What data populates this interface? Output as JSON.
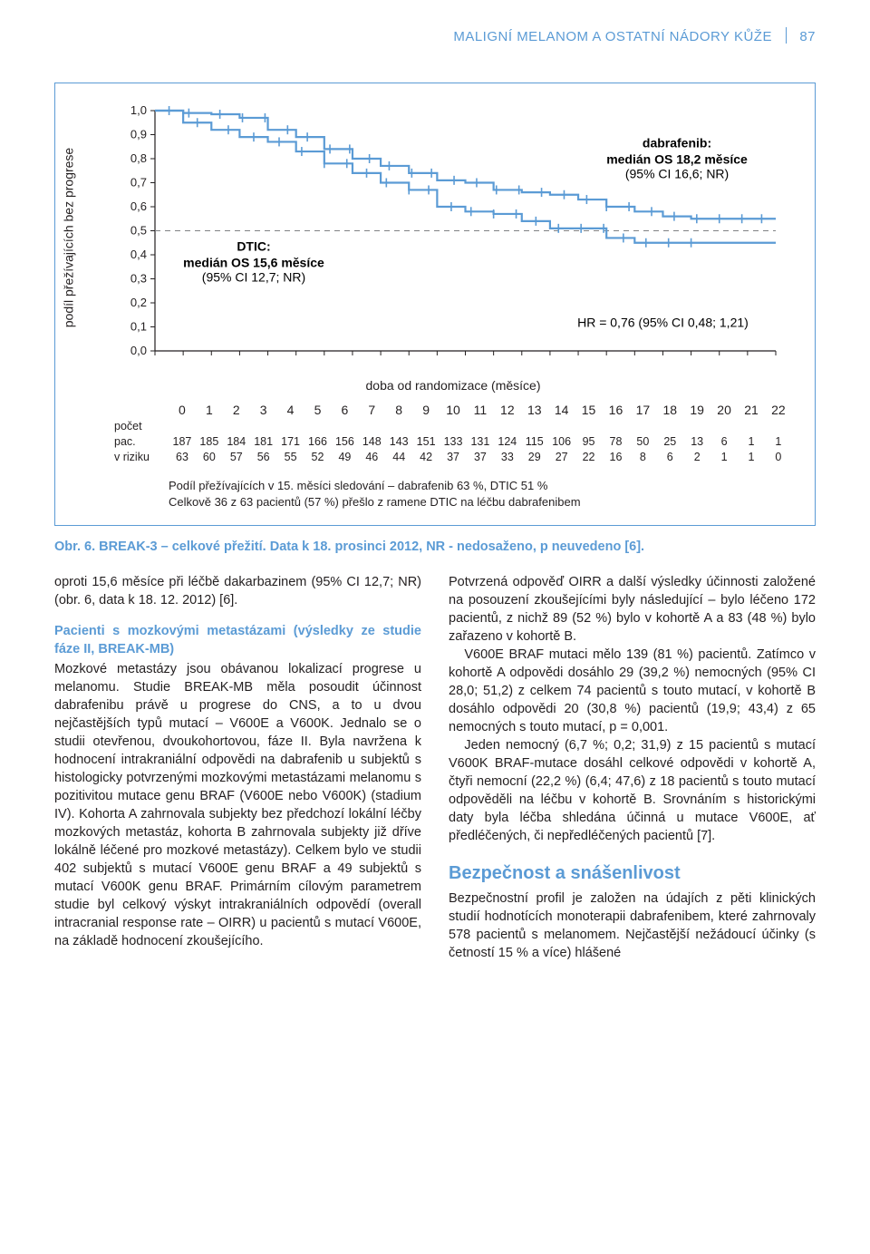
{
  "header": {
    "title": "MALIGNÍ MELANOM A OSTATNÍ NÁDORY KŮŽE",
    "page": "87"
  },
  "chart": {
    "type": "kaplan-meier",
    "y_label": "podíl přežívajících bez progrese",
    "x_label": "doba od randomizace (měsíce)",
    "ylim": [
      0,
      1.0
    ],
    "ytick_step": 0.1,
    "xlim": [
      0,
      22
    ],
    "xtick_step": 1,
    "yticks": [
      "0,0",
      "0,1",
      "0,2",
      "0,3",
      "0,4",
      "0,5",
      "0,6",
      "0,7",
      "0,8",
      "0,9",
      "1,0"
    ],
    "xticks": [
      "0",
      "1",
      "2",
      "3",
      "4",
      "5",
      "6",
      "7",
      "8",
      "9",
      "10",
      "11",
      "12",
      "13",
      "14",
      "15",
      "16",
      "17",
      "18",
      "19",
      "20",
      "21",
      "22"
    ],
    "axis_color": "#231f20",
    "grid_color": "#ffffff",
    "dashed_ref_y": 0.5,
    "dashed_color": "#808285",
    "series": [
      {
        "name": "dabrafenib",
        "color": "#5b9bd5",
        "width": 2.2,
        "points": [
          [
            0,
            1.0
          ],
          [
            1,
            0.99
          ],
          [
            2,
            0.985
          ],
          [
            3,
            0.97
          ],
          [
            4,
            0.92
          ],
          [
            5,
            0.89
          ],
          [
            6,
            0.84
          ],
          [
            7,
            0.8
          ],
          [
            8,
            0.77
          ],
          [
            9,
            0.74
          ],
          [
            10,
            0.71
          ],
          [
            11,
            0.7
          ],
          [
            12,
            0.67
          ],
          [
            13,
            0.66
          ],
          [
            14,
            0.65
          ],
          [
            15,
            0.63
          ],
          [
            16,
            0.6
          ],
          [
            17,
            0.58
          ],
          [
            18,
            0.56
          ],
          [
            19,
            0.55
          ],
          [
            20,
            0.55
          ],
          [
            21,
            0.55
          ],
          [
            22,
            0.55
          ]
        ],
        "censor_x": [
          0.5,
          1.2,
          2.3,
          3.1,
          3.9,
          4.7,
          5.4,
          6.2,
          6.9,
          7.6,
          8.3,
          9.1,
          9.8,
          10.6,
          11.4,
          12.1,
          12.9,
          13.7,
          14.5,
          15.3,
          16.0,
          16.8,
          17.6,
          18.4,
          19.2,
          20.0,
          20.8,
          21.5
        ]
      },
      {
        "name": "dtic",
        "color": "#5b9bd5",
        "width": 2.2,
        "points": [
          [
            0,
            1.0
          ],
          [
            1,
            0.95
          ],
          [
            2,
            0.92
          ],
          [
            3,
            0.89
          ],
          [
            4,
            0.87
          ],
          [
            5,
            0.83
          ],
          [
            6,
            0.78
          ],
          [
            7,
            0.74
          ],
          [
            8,
            0.7
          ],
          [
            9,
            0.67
          ],
          [
            10,
            0.6
          ],
          [
            11,
            0.58
          ],
          [
            12,
            0.57
          ],
          [
            13,
            0.54
          ],
          [
            14,
            0.51
          ],
          [
            15,
            0.51
          ],
          [
            16,
            0.47
          ],
          [
            17,
            0.45
          ],
          [
            18,
            0.45
          ],
          [
            19,
            0.45
          ],
          [
            20,
            0.45
          ],
          [
            21,
            0.45
          ],
          [
            22,
            0.45
          ]
        ],
        "censor_x": [
          1.5,
          2.6,
          3.5,
          4.4,
          5.2,
          6.0,
          6.8,
          7.5,
          8.2,
          9.0,
          9.7,
          10.5,
          11.2,
          12.0,
          12.8,
          13.5,
          14.3,
          15.1,
          15.9,
          16.6,
          17.4,
          18.2,
          19.0
        ]
      }
    ],
    "annot_dtic": {
      "l1": "DTIC:",
      "l2": "medián OS 15,6 měsíce",
      "l3": "(95% CI 12,7; NR)"
    },
    "annot_dabra": {
      "l1": "dabrafenib:",
      "l2": "medián OS 18,2 měsíce",
      "l3": "(95% CI 16,6; NR)"
    },
    "annot_hr": "HR = 0,76 (95% CI 0,48; 1,21)",
    "risk_label_col": "počet",
    "risk_rows": [
      {
        "label": "pac.",
        "values": [
          "187",
          "185",
          "184",
          "181",
          "171",
          "166",
          "156",
          "148",
          "143",
          "151",
          "133",
          "131",
          "124",
          "115",
          "106",
          "95",
          "78",
          "50",
          "25",
          "13",
          "6",
          "1",
          "1"
        ]
      },
      {
        "label": "v riziku",
        "values": [
          "63",
          "60",
          "57",
          "56",
          "55",
          "52",
          "49",
          "46",
          "44",
          "42",
          "37",
          "37",
          "33",
          "29",
          "27",
          "22",
          "16",
          "8",
          "6",
          "2",
          "1",
          "1",
          "0"
        ]
      }
    ],
    "note_l1": "Podíl přežívajících v 15. měsíci sledování – dabrafenib 63 %, DTIC 51 %",
    "note_l2": "Celkově 36 z 63 pacientů (57 %) přešlo z ramene DTIC na léčbu dabrafenibem"
  },
  "caption": "Obr. 6. BREAK-3 – celkové přežití. Data k  18. prosinci 2012, NR - nedosaženo, p neuvedeno [6].",
  "left": {
    "p1": "oproti 15,6 měsíce při léčbě dakarbazinem (95% CI 12,7; NR) (obr. 6, data k 18. 12. 2012) [6].",
    "h1": "Pacienti s mozkovými metastázami (výsledky ze studie fáze II, BREAK-MB)",
    "p2": "Mozkové metastázy jsou obávanou lokalizací progrese u melanomu. Studie BREAK-MB měla posoudit účinnost dabrafenibu právě u progrese do CNS, a to u dvou nejčastějších typů mutací – V600E a V600K. Jednalo se o studii otevřenou, dvoukohortovou, fáze II. Byla navržena k hodnocení intrakraniální odpovědi na dabrafenib u subjektů s histologicky potvrzenými mozkovými metastázami melanomu s pozitivitou mutace genu BRAF (V600E nebo V600K) (stadium IV). Kohorta A zahrnovala subjekty bez předchozí lokální léčby mozkových metastáz, kohorta B zahrnovala subjekty již dříve lokálně léčené pro mozkové metastázy). Celkem bylo ve studii 402 subjektů s mutací V600E genu BRAF a 49 subjektů s mutací V600K genu BRAF. Primárním cílovým parametrem studie byl celkový výskyt intrakraniálních odpovědí (overall intracranial response rate – OIRR) u pacientů s mutací V600E, na základě hodnocení zkoušejícího."
  },
  "right": {
    "p1": "Potvrzená odpověď OIRR a další výsledky účinnosti založené na posouzení zkoušejícími byly následující – bylo léčeno 172 pacientů, z nichž 89 (52 %) bylo v kohortě A a 83 (48 %) bylo zařazeno v kohortě B.",
    "p2": "V600E BRAF mutaci mělo 139 (81 %) pacientů. Zatímco v kohortě A odpovědi dosáhlo 29 (39,2 %) nemocných (95% CI 28,0; 51,2) z celkem 74 pacientů s touto mutací, v kohortě B dosáhlo odpovědi 20 (30,8 %) pacientů (19,9; 43,4) z 65 nemocných s touto mutací, p = 0,001.",
    "p3": "Jeden nemocný (6,7 %; 0,2; 31,9) z 15 pacientů s mutací V600K BRAF-mutace dosáhl celkové odpovědi v kohortě A, čtyři nemocní (22,2 %) (6,4; 47,6) z 18 pacientů s touto mutací odpověděli na léčbu v kohortě B. Srovnáním s historickými daty byla léčba shledána  účinná u mutace V600E, ať předléčených, či nepředléčených pacientů [7].",
    "h1": "Bezpečnost a snášenlivost",
    "p4": "Bezpečnostní profil je založen na údajích z pěti klinických studií hodnotících monoterapii dabrafenibem, které zahrnovaly 578 pacientů s melanomem. Nejčastější nežádoucí účinky (s četností 15 % a více) hlášené"
  }
}
